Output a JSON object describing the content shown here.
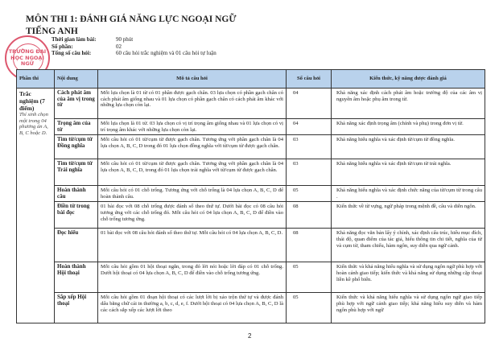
{
  "heading": {
    "title": "MÔN THI 1: ĐÁNH GIÁ NĂNG LỰC NGOẠI NGỮ",
    "subtitle": "TIẾNG ANH"
  },
  "info": [
    {
      "label": "Thời gian làm bài:",
      "value": "90 phút"
    },
    {
      "label": "Số phần:",
      "value": "02"
    },
    {
      "label": "Tổng số câu hỏi:",
      "value": "60 câu hỏi trắc nghiệm và 01 câu hỏi tự luận"
    }
  ],
  "stamp": {
    "text": "TRƯỜNG ĐẠI HỌC NGOẠI NGỮ",
    "color": "#d83a55"
  },
  "table": {
    "headers": [
      "Phần thi",
      "Nội dung",
      "Mô tả câu hỏi",
      "Số câu hỏi",
      "Kiến thức, kỹ năng được đánh giá"
    ],
    "header_color": "#b9d2ec",
    "part": {
      "name": "Trắc nghiệm (7 điểm)",
      "note": "Thí sinh chọn một trong 04 phương án A, B, C hoặc D."
    },
    "rows": [
      {
        "content": "Cách phát âm của âm vị trong từ",
        "desc": "Mỗi lựa chọn là 01 từ có 01 phần được gạch chân. 03 lựa chọn có phần gạch chân có cách phát âm giống nhau và 01 lựa chọn có phần gạch chân có cách phát âm khác với những lựa chọn còn lại.",
        "count": "04",
        "skill": "Khả năng xác định cách phát âm hoặc trường độ của các âm vị nguyên âm hoặc phụ âm trong từ."
      },
      {
        "content": "Trọng âm của từ",
        "desc": "Mỗi lựa chọn là 01 từ. 03 lựa chọn có vị trí trọng âm giống nhau và 01 lựa chọn có vị trí trọng âm khác với những lựa chọn còn lại.",
        "count": "04",
        "skill": "Khả năng xác định trọng âm (chính và phụ) trong đơn vị từ."
      },
      {
        "content": "Tìm từ/cụm từ Đồng nghĩa",
        "desc": "Mỗi câu hỏi có 01 từ/cụm từ được gạch chân. Tương ứng với phần gạch chân là 04 lựa chọn A, B, C, D trong đó 01 lựa chọn đồng nghĩa với từ/cụm từ được gạch chân.",
        "count": "03",
        "skill": "Khả năng hiểu nghĩa và xác định từ/cụm từ đồng nghĩa."
      },
      {
        "content": "Tìm từ/cụm từ Trái nghĩa",
        "desc": "Mỗi câu hỏi có 01 từ/cụm từ được gạch chân. Tương ứng với phần gạch chân là 04 lựa chọn A, B, C, D, trong đó 01 lựa chọn trái nghĩa với từ/cụm từ được gạch chân.",
        "count": "03",
        "skill": "Khả năng hiểu nghĩa và xác định từ/cụm từ trái nghĩa."
      },
      {
        "content": "Hoàn thành câu",
        "desc": "Mỗi câu hỏi có 01 chỗ trống. Tương ứng với chỗ trống là 04 lựa chọn A, B, C, D để hoàn thành câu.",
        "count": "05",
        "skill": "Khả năng hiểu nghĩa và xác định chức năng của từ/cụm từ trong câu ."
      },
      {
        "content": "Điền từ trong bài đọc",
        "desc": "01 bài đọc với 08 chỗ trống được đánh số theo thứ tự. Dưới bài đọc có 08 câu hỏi tương ứng với các chỗ trống đó. Mỗi câu hỏi có 04 lựa chọn A, B, C, D để điền vào chỗ trống tương ứng.",
        "count": "08",
        "skill": "Kiến thức về từ vựng, ngữ pháp trong mệnh đề, câu và diễn ngôn."
      },
      {
        "content": "Đọc hiểu",
        "desc": "01 bài đọc với 08 câu hỏi đánh số theo thứ tự. Mỗi câu hỏi có 04 lựa chọn A, B, C, D.",
        "count": "08",
        "skill": "Khả năng đọc văn bản lấy ý chính, xác định cấu trúc, hiểu mục đích, thái độ, quan điểm của tác giả, hiểu thông tin chi tiết, nghĩa của từ và cụm từ, tham chiếu, hàm ngôn, suy diễn qua ngữ cảnh."
      },
      {
        "content": "Hoàn thành Hội thoại",
        "desc": "Mỗi câu hỏi gồm 01 hội thoại ngắn, trong đó lời nói hoặc lời đáp có 01 chỗ trống. Dưới hội thoại có 04 lựa chọn A, B, C, D để điền vào chỗ trống tương ứng.",
        "count": "05",
        "skill": "Kiến thức và khả năng hiểu nghĩa và sử dụng ngôn ngữ phù hợp với hoàn cảnh giao tiếp; kiến thức và khả năng sử dụng những cặp thoại liền kề phổ biến."
      },
      {
        "content": "Sắp xếp Hội thoại",
        "desc": "Mỗi câu hỏi gồm 01 đoạn hội thoại có các lượt lời bị xáo trộn thứ tự và được đánh dấu bằng chữ cái in thường a, b, c, d, e, f. Dưới hội thoại có 04 lựa chọn A, B, C, D là các cách sắp xếp các lượt lời theo",
        "count": "05",
        "skill": "Kiến thức và khả năng hiểu nghĩa và sử dụng ngôn ngữ giao tiếp phù hợp với ngữ cảnh giao tiếp; khả năng hiểu suy diễn và hàm ngôn phù hợp với ngữ"
      }
    ]
  },
  "page_number": "2"
}
